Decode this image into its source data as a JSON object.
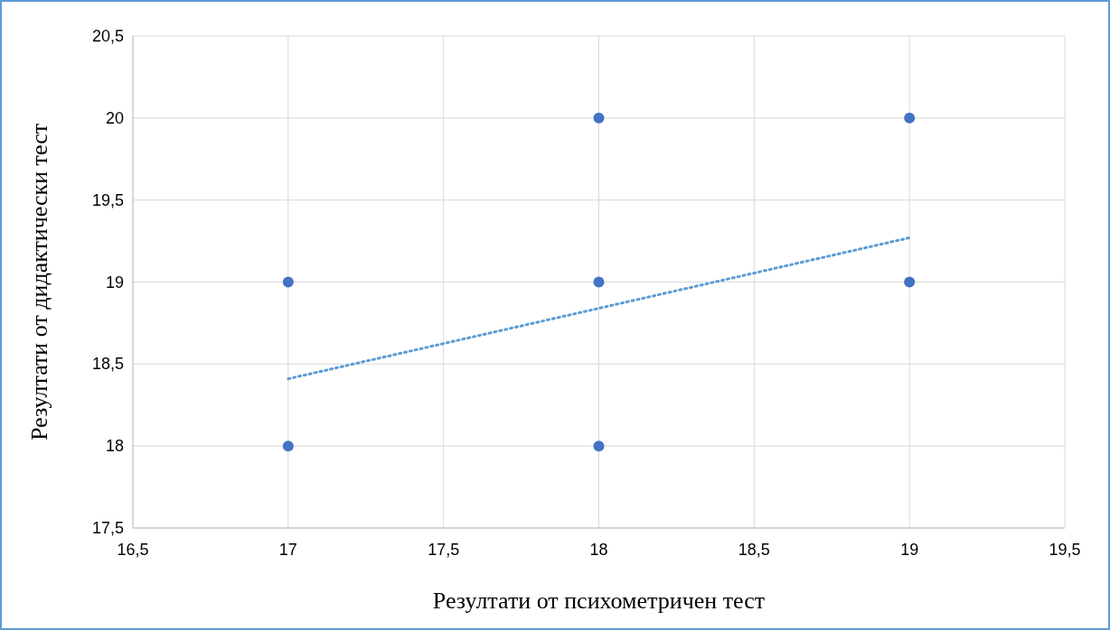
{
  "chart_data": {
    "type": "scatter",
    "xlabel": "Резултати от психометричен тест",
    "ylabel": "Резултати от дидактически тест",
    "xlim": [
      16.5,
      19.5
    ],
    "xticks": [
      {
        "value": 16.5,
        "label": "16,5"
      },
      17,
      {
        "value": 17.5,
        "label": "17,5"
      },
      18,
      {
        "value": 18.5,
        "label": "18,5"
      },
      19,
      {
        "value": 19.5,
        "label": "19,5"
      }
    ],
    "ylim": [
      17.5,
      20.5
    ],
    "yticks": [
      {
        "value": 17.5,
        "label": "17,5"
      },
      18,
      {
        "value": 18.5,
        "label": "18,5"
      },
      19,
      {
        "value": 19.5,
        "label": "19,5"
      },
      20,
      {
        "value": 20.5,
        "label": "20,5"
      }
    ],
    "grid": true,
    "marker": "circle",
    "series": [
      {
        "color": "#4472c4",
        "x": [
          17,
          17,
          18,
          18,
          18,
          19,
          19
        ],
        "values": [
          19,
          18,
          20,
          19,
          18,
          20,
          19
        ]
      },
      {
        "type": "line",
        "color": "#5b9bd5",
        "line_style": "dotted",
        "marker": "none",
        "x": [
          17,
          19
        ],
        "values": [
          18.41,
          19.27
        ]
      }
    ]
  }
}
